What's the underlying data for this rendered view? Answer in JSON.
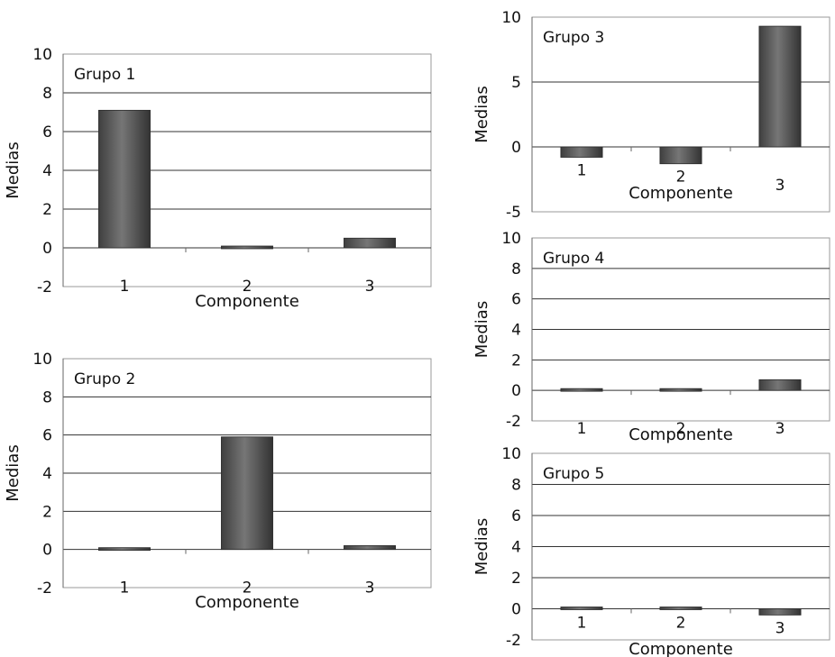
{
  "chart_data": [
    {
      "type": "bar",
      "title": "Grupo 1",
      "xlabel": "Componente",
      "ylabel": "Medias",
      "categories": [
        "1",
        "2",
        "3"
      ],
      "values": [
        7.1,
        0.1,
        0.5
      ],
      "ylim": [
        -2,
        10
      ],
      "yticks": [
        -2,
        0,
        2,
        4,
        6,
        8,
        10
      ],
      "grid": true,
      "bar_color": "#555555"
    },
    {
      "type": "bar",
      "title": "Grupo 2",
      "xlabel": "Componente",
      "ylabel": "Medias",
      "categories": [
        "1",
        "2",
        "3"
      ],
      "values": [
        0.0,
        5.9,
        0.2
      ],
      "ylim": [
        -2,
        10
      ],
      "yticks": [
        -2,
        0,
        2,
        4,
        6,
        8,
        10
      ],
      "grid": true,
      "bar_color": "#555555"
    },
    {
      "type": "bar",
      "title": "Grupo 3",
      "xlabel": "Componente",
      "ylabel": "Medias",
      "categories": [
        "1",
        "2",
        "3"
      ],
      "values": [
        -0.8,
        -1.3,
        9.3
      ],
      "ylim": [
        -5,
        10
      ],
      "yticks": [
        -5,
        0,
        5,
        10
      ],
      "grid": true,
      "bar_color": "#555555"
    },
    {
      "type": "bar",
      "title": "Grupo 4",
      "xlabel": "Componente",
      "ylabel": "Medias",
      "categories": [
        "1",
        "2",
        "3"
      ],
      "values": [
        0.05,
        0.0,
        0.7
      ],
      "ylim": [
        -2,
        10
      ],
      "yticks": [
        -2,
        0,
        2,
        4,
        6,
        8,
        10
      ],
      "grid": true,
      "bar_color": "#555555"
    },
    {
      "type": "bar",
      "title": "Grupo 5",
      "xlabel": "Componente",
      "ylabel": "Medias",
      "categories": [
        "1",
        "2",
        "3"
      ],
      "values": [
        -0.1,
        -0.1,
        -0.4
      ],
      "ylim": [
        -2,
        10
      ],
      "yticks": [
        -2,
        0,
        2,
        4,
        6,
        8,
        10
      ],
      "grid": true,
      "bar_color": "#555555"
    }
  ]
}
